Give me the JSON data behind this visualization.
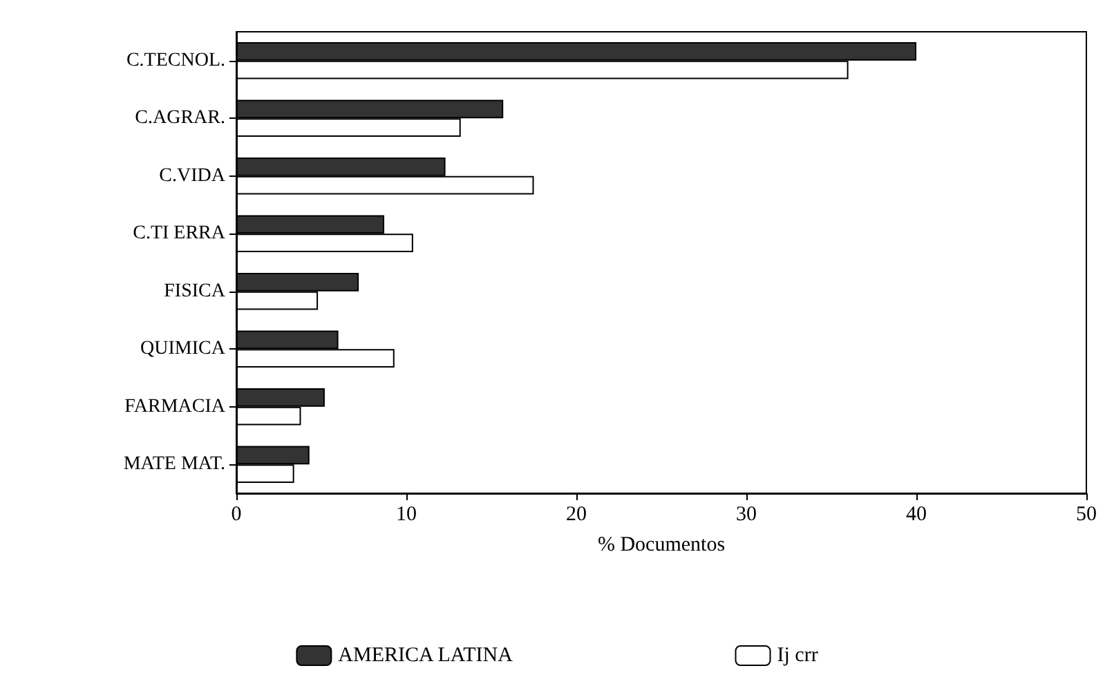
{
  "chart_data": {
    "type": "bar",
    "orientation": "horizontal",
    "xlabel": "% Documentos",
    "categories": [
      "C.TECNOL.",
      "C.AGRAR.",
      "C.VIDA",
      "C.TI ERRA",
      "FISICA",
      "QUIMICA",
      "FARMACIA",
      "MATE MAT."
    ],
    "series": [
      {
        "name": "AMERICA LATINA",
        "color": "#333333",
        "values": [
          40,
          15.7,
          12.3,
          8.7,
          7.2,
          6.0,
          5.2,
          4.3
        ]
      },
      {
        "name": "Ij crr",
        "color": "#ffffff",
        "values": [
          36,
          13.2,
          17.5,
          10.4,
          4.8,
          9.3,
          3.8,
          3.4
        ]
      }
    ],
    "xlim": [
      0,
      50
    ],
    "xticks": [
      0,
      10,
      20,
      30,
      40,
      50
    ],
    "grid": false,
    "legend": "bottom"
  }
}
